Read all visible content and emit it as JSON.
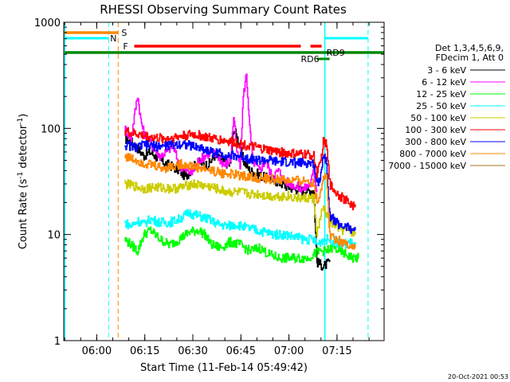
{
  "chart_data": {
    "type": "line",
    "title": "RHESSI Observing Summary Count Rates",
    "xlabel": "Start Time (11-Feb-14 05:49:42)",
    "ylabel_main": "Count Rate (s",
    "ylabel_sup1": "-1",
    "ylabel_mid": " detector",
    "ylabel_sup2": "-1",
    "ylabel_end": ")",
    "y_scale": "log",
    "ylim": [
      1,
      1000
    ],
    "xlim_minutes": [
      0,
      100
    ],
    "x_ticks": [
      {
        "minute": 10.3,
        "label": "06:00"
      },
      {
        "minute": 25.3,
        "label": "06:15"
      },
      {
        "minute": 40.3,
        "label": "06:30"
      },
      {
        "minute": 55.3,
        "label": "06:45"
      },
      {
        "minute": 70.3,
        "label": "07:00"
      },
      {
        "minute": 85.3,
        "label": "07:15"
      }
    ],
    "y_ticks": [
      {
        "value": 1,
        "label": "1"
      },
      {
        "value": 10,
        "label": "10"
      },
      {
        "value": 100,
        "label": "100"
      },
      {
        "value": 1000,
        "label": "1000"
      }
    ],
    "legend_header": [
      "Det 1,3,4,5,6,9,",
      "FDecim 1, Att 0"
    ],
    "series": [
      {
        "name": "3 - 6 keV",
        "color": "#000000",
        "points": [
          [
            19,
            80
          ],
          [
            21,
            75
          ],
          [
            23,
            65
          ],
          [
            25,
            55
          ],
          [
            27,
            60
          ],
          [
            30,
            50
          ],
          [
            33,
            45
          ],
          [
            36,
            40
          ],
          [
            38,
            35
          ],
          [
            40,
            42
          ],
          [
            42,
            48
          ],
          [
            45,
            45
          ],
          [
            47,
            55
          ],
          [
            50,
            48
          ],
          [
            52,
            45
          ],
          [
            53,
            100
          ],
          [
            55,
            70
          ],
          [
            56,
            50
          ],
          [
            58,
            40
          ],
          [
            60,
            38
          ],
          [
            62,
            35
          ],
          [
            65,
            33
          ],
          [
            68,
            30
          ],
          [
            70,
            28
          ],
          [
            72,
            27
          ],
          [
            74,
            26
          ],
          [
            76,
            26
          ],
          [
            78,
            26
          ],
          [
            79,
            5.5
          ],
          [
            81,
            5
          ],
          [
            83,
            5.5
          ]
        ]
      },
      {
        "name": "6 - 12 keV",
        "color": "#ff00ff",
        "points": [
          [
            19,
            100
          ],
          [
            21,
            80
          ],
          [
            23,
            210
          ],
          [
            24,
            120
          ],
          [
            25,
            90
          ],
          [
            27,
            75
          ],
          [
            28,
            65
          ],
          [
            30,
            55
          ],
          [
            32,
            60
          ],
          [
            34,
            70
          ],
          [
            36,
            45
          ],
          [
            38,
            40
          ],
          [
            40,
            38
          ],
          [
            42,
            50
          ],
          [
            44,
            55
          ],
          [
            46,
            60
          ],
          [
            48,
            55
          ],
          [
            50,
            45
          ],
          [
            52,
            50
          ],
          [
            53,
            130
          ],
          [
            54,
            60
          ],
          [
            55,
            45
          ],
          [
            56,
            200
          ],
          [
            57,
            330
          ],
          [
            58,
            100
          ],
          [
            59,
            50
          ],
          [
            61,
            40
          ],
          [
            63,
            50
          ],
          [
            65,
            35
          ],
          [
            67,
            40
          ],
          [
            69,
            32
          ],
          [
            71,
            30
          ],
          [
            73,
            28
          ],
          [
            75,
            27
          ],
          [
            77,
            30
          ],
          [
            78,
            40
          ],
          [
            79,
            25
          ]
        ]
      },
      {
        "name": "12 - 25 keV",
        "color": "#00ff00",
        "points": [
          [
            19,
            9
          ],
          [
            21,
            8
          ],
          [
            23,
            7
          ],
          [
            25,
            10
          ],
          [
            27,
            11
          ],
          [
            30,
            9
          ],
          [
            33,
            8
          ],
          [
            36,
            9
          ],
          [
            39,
            10.5
          ],
          [
            42,
            11
          ],
          [
            44,
            10
          ],
          [
            46,
            8
          ],
          [
            49,
            7.5
          ],
          [
            52,
            8.5
          ],
          [
            55,
            8
          ],
          [
            58,
            7
          ],
          [
            61,
            7.5
          ],
          [
            64,
            6.5
          ],
          [
            67,
            6
          ],
          [
            70,
            6
          ],
          [
            73,
            6
          ],
          [
            76,
            6
          ],
          [
            78,
            6.5
          ],
          [
            80,
            7
          ],
          [
            82,
            7
          ],
          [
            84,
            7.5
          ],
          [
            86,
            7
          ],
          [
            88,
            6.5
          ],
          [
            90,
            6
          ],
          [
            92,
            6
          ]
        ]
      },
      {
        "name": "25 - 50 keV",
        "color": "#00ffff",
        "points": [
          [
            19,
            13
          ],
          [
            21,
            12
          ],
          [
            23,
            13.5
          ],
          [
            25,
            12.5
          ],
          [
            27,
            14
          ],
          [
            30,
            13
          ],
          [
            33,
            13
          ],
          [
            36,
            14
          ],
          [
            39,
            16
          ],
          [
            42,
            15
          ],
          [
            45,
            14
          ],
          [
            48,
            12.5
          ],
          [
            51,
            12
          ],
          [
            54,
            12.5
          ],
          [
            57,
            11.5
          ],
          [
            60,
            11
          ],
          [
            63,
            10.5
          ],
          [
            66,
            10
          ],
          [
            69,
            10
          ],
          [
            72,
            9.5
          ],
          [
            75,
            9
          ],
          [
            78,
            9
          ],
          [
            79,
            8
          ],
          [
            81,
            9
          ],
          [
            83,
            9
          ],
          [
            85,
            8.5
          ],
          [
            87,
            8
          ],
          [
            89,
            8.5
          ],
          [
            91,
            8
          ]
        ]
      },
      {
        "name": "50 - 100 keV",
        "color": "#cccc00",
        "points": [
          [
            19,
            30
          ],
          [
            21,
            29
          ],
          [
            23,
            28
          ],
          [
            25,
            27
          ],
          [
            28,
            28
          ],
          [
            31,
            27.5
          ],
          [
            34,
            27
          ],
          [
            37,
            28
          ],
          [
            40,
            30
          ],
          [
            43,
            29
          ],
          [
            46,
            28
          ],
          [
            49,
            26
          ],
          [
            52,
            25
          ],
          [
            55,
            25
          ],
          [
            58,
            24
          ],
          [
            61,
            24
          ],
          [
            64,
            23
          ],
          [
            67,
            23
          ],
          [
            70,
            23
          ],
          [
            73,
            22
          ],
          [
            76,
            22
          ],
          [
            78,
            22
          ],
          [
            79,
            10
          ],
          [
            80,
            14
          ],
          [
            81,
            18
          ],
          [
            83,
            13
          ],
          [
            85,
            12
          ],
          [
            87,
            11
          ],
          [
            89,
            11
          ],
          [
            91,
            10
          ]
        ]
      },
      {
        "name": "100 - 300 keV",
        "color": "#ff0000",
        "points": [
          [
            19,
            95
          ],
          [
            21,
            90
          ],
          [
            23,
            88
          ],
          [
            25,
            85
          ],
          [
            28,
            82
          ],
          [
            31,
            80
          ],
          [
            34,
            82
          ],
          [
            37,
            85
          ],
          [
            40,
            88
          ],
          [
            43,
            85
          ],
          [
            46,
            80
          ],
          [
            49,
            78
          ],
          [
            52,
            75
          ],
          [
            55,
            72
          ],
          [
            58,
            68
          ],
          [
            61,
            65
          ],
          [
            64,
            62
          ],
          [
            67,
            60
          ],
          [
            70,
            58
          ],
          [
            73,
            57
          ],
          [
            76,
            57
          ],
          [
            78,
            55
          ],
          [
            79,
            38
          ],
          [
            80,
            45
          ],
          [
            81,
            75
          ],
          [
            82,
            70
          ],
          [
            83,
            30
          ],
          [
            85,
            25
          ],
          [
            87,
            22
          ],
          [
            89,
            20
          ],
          [
            91,
            18
          ]
        ]
      },
      {
        "name": "300 - 800 keV",
        "color": "#0000ff",
        "points": [
          [
            19,
            70
          ],
          [
            21,
            68
          ],
          [
            23,
            66
          ],
          [
            25,
            70
          ],
          [
            28,
            68
          ],
          [
            31,
            68
          ],
          [
            34,
            70
          ],
          [
            37,
            72
          ],
          [
            40,
            68
          ],
          [
            43,
            65
          ],
          [
            46,
            60
          ],
          [
            49,
            58
          ],
          [
            52,
            55
          ],
          [
            55,
            55
          ],
          [
            58,
            52
          ],
          [
            61,
            50
          ],
          [
            64,
            50
          ],
          [
            67,
            48
          ],
          [
            70,
            48
          ],
          [
            73,
            47
          ],
          [
            76,
            47
          ],
          [
            78,
            46
          ],
          [
            79,
            30
          ],
          [
            80,
            35
          ],
          [
            81,
            55
          ],
          [
            82,
            50
          ],
          [
            83,
            15
          ],
          [
            85,
            13
          ],
          [
            87,
            12
          ],
          [
            89,
            11.5
          ],
          [
            91,
            11
          ]
        ]
      },
      {
        "name": "800 - 7000 keV",
        "color": "#ff8800",
        "points": [
          [
            19,
            55
          ],
          [
            21,
            52
          ],
          [
            23,
            50
          ],
          [
            25,
            47
          ],
          [
            28,
            45
          ],
          [
            31,
            42
          ],
          [
            34,
            44
          ],
          [
            37,
            46
          ],
          [
            40,
            44
          ],
          [
            43,
            42
          ],
          [
            46,
            40
          ],
          [
            49,
            38
          ],
          [
            52,
            37
          ],
          [
            55,
            36
          ],
          [
            58,
            35
          ],
          [
            61,
            34
          ],
          [
            64,
            33
          ],
          [
            67,
            33
          ],
          [
            70,
            32
          ],
          [
            73,
            32
          ],
          [
            76,
            32
          ],
          [
            78,
            31
          ],
          [
            79,
            20
          ],
          [
            80,
            25
          ],
          [
            81,
            35
          ],
          [
            82,
            34
          ],
          [
            83,
            10
          ],
          [
            85,
            9
          ],
          [
            87,
            8.5
          ],
          [
            89,
            8
          ],
          [
            91,
            7.5
          ]
        ]
      },
      {
        "name": "7000 - 15000 keV",
        "color": "#aa7722",
        "points": []
      }
    ],
    "annotations": [
      {
        "label": "S",
        "color": "#ff8800"
      },
      {
        "label": "N",
        "color": "#00ffff"
      },
      {
        "label": "F",
        "color": "#ff0000"
      },
      {
        "label": "RD9",
        "color": "#008800"
      },
      {
        "label": "RD6",
        "color": "#008800"
      }
    ],
    "footer_date": "20-Oct-2021 00:53"
  }
}
